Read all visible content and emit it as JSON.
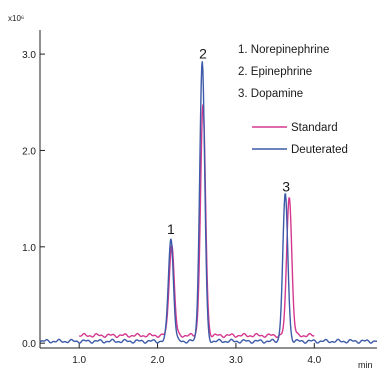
{
  "chart_data": {
    "type": "line",
    "multiplier": "x10⁶",
    "xlabel": "min",
    "xlim": [
      0.5,
      4.8
    ],
    "ylim": [
      -0.05,
      3.25
    ],
    "xticks": [
      1.0,
      2.0,
      3.0,
      4.0
    ],
    "xtick_labels": [
      "1.0",
      "2.0",
      "3.0",
      "4.0"
    ],
    "yticks": [
      0.0,
      1.0,
      2.0,
      3.0
    ],
    "ytick_labels": [
      "0.0",
      "1.0",
      "2.0",
      "3.0"
    ],
    "grid": false,
    "legend_position": "top-right",
    "compounds": [
      "1. Norepinephrine",
      "2. Epinephrine",
      "3. Dopamine"
    ],
    "peak_labels": [
      {
        "text": "1",
        "x": 2.17,
        "y": 1.08
      },
      {
        "text": "2",
        "x": 2.58,
        "y": 2.9
      },
      {
        "text": "3",
        "x": 3.64,
        "y": 1.52
      }
    ],
    "series": [
      {
        "name": "Standard",
        "color": "#d4388f",
        "baseline": 0.08,
        "baseline_range": [
          1.0,
          4.0
        ],
        "peaks": [
          {
            "x": 2.18,
            "height": 0.95
          },
          {
            "x": 2.58,
            "height": 2.38
          },
          {
            "x": 3.68,
            "height": 1.45
          }
        ]
      },
      {
        "name": "Deuterated",
        "color": "#3c5aa8",
        "baseline": 0.02,
        "baseline_range": [
          0.5,
          4.8
        ],
        "peaks": [
          {
            "x": 2.17,
            "height": 1.07
          },
          {
            "x": 2.57,
            "height": 2.9
          },
          {
            "x": 3.63,
            "height": 1.52
          }
        ]
      }
    ]
  }
}
